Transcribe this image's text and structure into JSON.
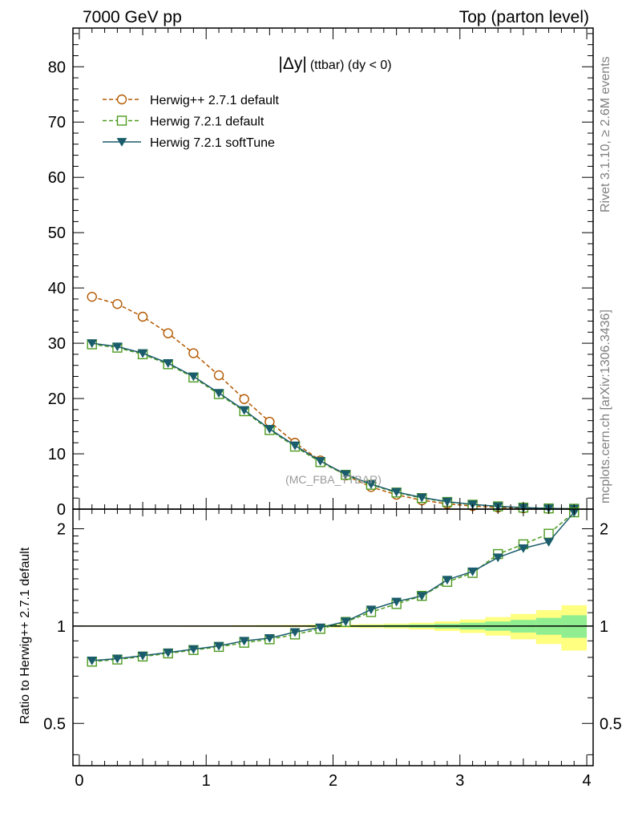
{
  "header": {
    "left": "7000 GeV pp",
    "right": "Top (parton level)"
  },
  "side_labels": {
    "rivet": "Rivet 3.1.10, ≥ 2.6M events",
    "mcplots": "mcplots.cern.ch [arXiv:1306.3436]"
  },
  "watermark": "(MC_FBA_TTBAR)",
  "chart_data": [
    {
      "type": "line",
      "title": "|Δy| (ttbar) (dy < 0)",
      "title_parts": {
        "main": "|Δy|",
        "sub": "(ttbar) (dy < 0)"
      },
      "xlim": [
        -0.05,
        4.05
      ],
      "ylim": [
        0,
        87
      ],
      "ytick_values": [
        10,
        20,
        30,
        40,
        50,
        60,
        70,
        80
      ],
      "ytick_labels": [
        "10",
        "20",
        "30",
        "40",
        "50",
        "60",
        "70",
        "80"
      ],
      "legend_position": "top-left",
      "x": [
        0.1,
        0.3,
        0.5,
        0.7,
        0.9,
        1.1,
        1.3,
        1.5,
        1.7,
        1.9,
        2.1,
        2.3,
        2.5,
        2.7,
        2.9,
        3.1,
        3.3,
        3.5,
        3.7,
        3.9
      ],
      "series": [
        {
          "name": "Herwig++ 2.7.1 default",
          "color": "#b35900",
          "marker": "open-circle",
          "dash": "dashed",
          "values": [
            38.4,
            37.1,
            34.8,
            31.8,
            28.2,
            24.2,
            19.9,
            15.8,
            12.0,
            8.8,
            6.1,
            4.0,
            2.6,
            1.6,
            0.95,
            0.55,
            0.3,
            0.15,
            0.07,
            0.03
          ]
        },
        {
          "name": "Herwig 7.2.1 default",
          "color": "#4d9a1f",
          "marker": "open-square",
          "dash": "dashed",
          "values": [
            29.8,
            29.2,
            28.0,
            26.2,
            23.8,
            20.8,
            17.7,
            14.3,
            11.3,
            8.5,
            6.2,
            4.4,
            3.0,
            2.0,
            1.3,
            0.8,
            0.5,
            0.27,
            0.13,
            0.07
          ]
        },
        {
          "name": "Herwig 7.2.1 softTune",
          "color": "#1a5c6b",
          "marker": "filled-triangle-down",
          "dash": "solid",
          "values": [
            30.0,
            29.4,
            28.2,
            26.4,
            24.0,
            21.0,
            17.9,
            14.5,
            11.5,
            8.7,
            6.3,
            4.5,
            3.1,
            2.1,
            1.35,
            0.85,
            0.5,
            0.27,
            0.13,
            0.06
          ]
        }
      ]
    },
    {
      "type": "line",
      "ylabel": "Ratio to Herwig++ 2.7.1 default",
      "xlim": [
        -0.05,
        4.05
      ],
      "ylim": [
        0.37,
        2.3
      ],
      "ytick_values": [
        0.5,
        1,
        2
      ],
      "ytick_labels": [
        "0.5",
        "1",
        "2"
      ],
      "xtick_values": [
        0,
        1,
        2,
        3,
        4
      ],
      "xtick_labels": [
        "0",
        "1",
        "2",
        "3",
        "4"
      ],
      "x": [
        0.1,
        0.3,
        0.5,
        0.7,
        0.9,
        1.1,
        1.3,
        1.5,
        1.7,
        1.9,
        2.1,
        2.3,
        2.5,
        2.7,
        2.9,
        3.1,
        3.3,
        3.5,
        3.7,
        3.9
      ],
      "reference_line": 1,
      "band_inner": {
        "color": "#90ee90",
        "half_widths": [
          0.002,
          0.002,
          0.002,
          0.002,
          0.002,
          0.003,
          0.003,
          0.004,
          0.004,
          0.005,
          0.006,
          0.007,
          0.009,
          0.012,
          0.017,
          0.024,
          0.033,
          0.045,
          0.06,
          0.08
        ]
      },
      "band_outer": {
        "color": "#ffff80",
        "half_widths": [
          0.004,
          0.004,
          0.004,
          0.004,
          0.005,
          0.005,
          0.006,
          0.007,
          0.008,
          0.01,
          0.012,
          0.014,
          0.018,
          0.024,
          0.034,
          0.048,
          0.066,
          0.09,
          0.12,
          0.16
        ]
      },
      "series": [
        {
          "name": "Herwig 7.2.1 default",
          "color": "#4d9a1f",
          "marker": "open-square",
          "dash": "dashed",
          "values": [
            0.776,
            0.788,
            0.805,
            0.823,
            0.843,
            0.862,
            0.888,
            0.91,
            0.942,
            0.98,
            1.03,
            1.105,
            1.17,
            1.24,
            1.37,
            1.46,
            1.67,
            1.79,
            1.93,
            2.27
          ]
        },
        {
          "name": "Herwig 7.2.1 softTune",
          "color": "#1a5c6b",
          "marker": "filled-triangle-down",
          "dash": "solid",
          "values": [
            0.782,
            0.793,
            0.81,
            0.828,
            0.848,
            0.868,
            0.9,
            0.918,
            0.958,
            0.99,
            1.033,
            1.125,
            1.19,
            1.24,
            1.39,
            1.475,
            1.63,
            1.74,
            1.82,
            2.25
          ]
        }
      ]
    }
  ]
}
